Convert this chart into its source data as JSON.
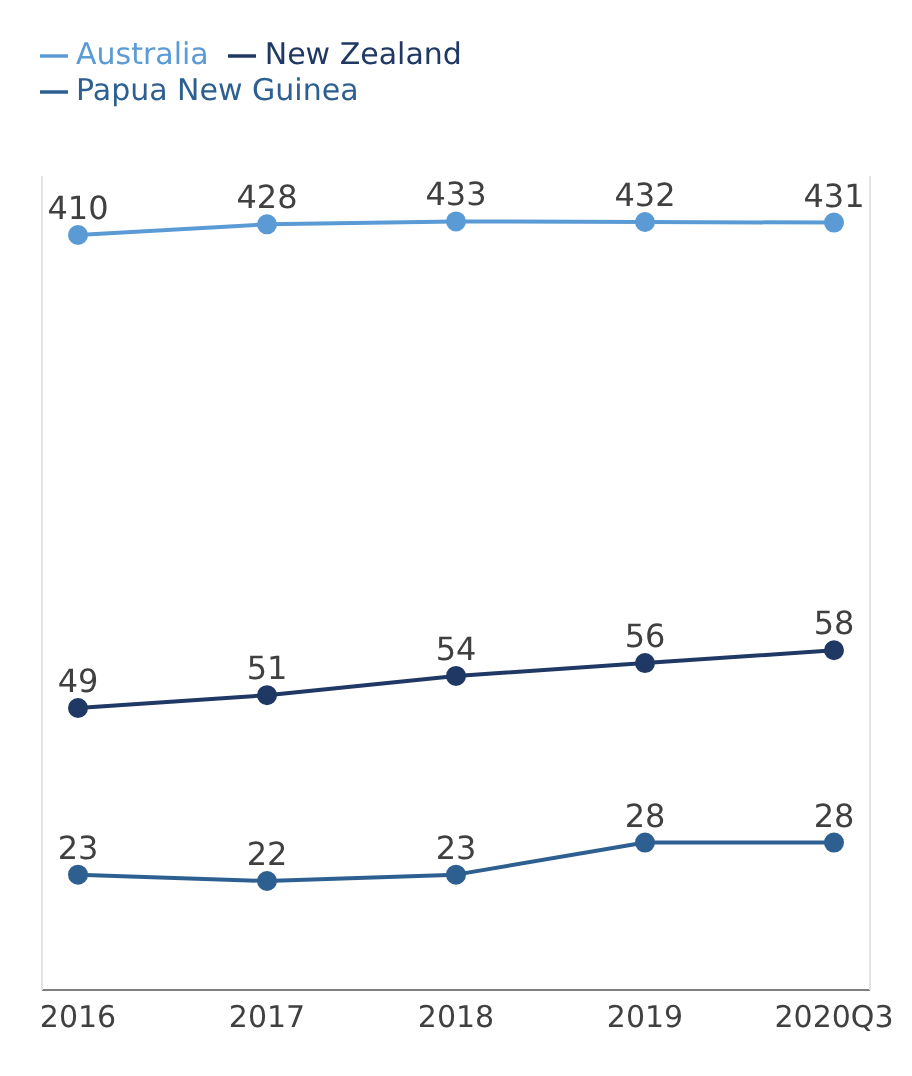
{
  "chart_data": {
    "type": "line",
    "categories": [
      "2016",
      "2017",
      "2018",
      "2019",
      "2020Q3"
    ],
    "series": [
      {
        "name": "Australia",
        "color": "#5b9bd5",
        "values": [
          410,
          428,
          433,
          432,
          431
        ],
        "axis": "y2"
      },
      {
        "name": "New Zealand",
        "color": "#1f3864",
        "values": [
          49,
          51,
          54,
          56,
          58
        ]
      },
      {
        "name": "Papua New Guinea",
        "color": "#2e5f91",
        "values": [
          23,
          22,
          23,
          28,
          28
        ]
      }
    ],
    "ylim": [
      5,
      132
    ],
    "y2lim": [
      -870,
      510
    ],
    "tick_labels": "x",
    "data_labels": true,
    "legend": "top left",
    "marker": "circle",
    "line_style": "solid"
  }
}
